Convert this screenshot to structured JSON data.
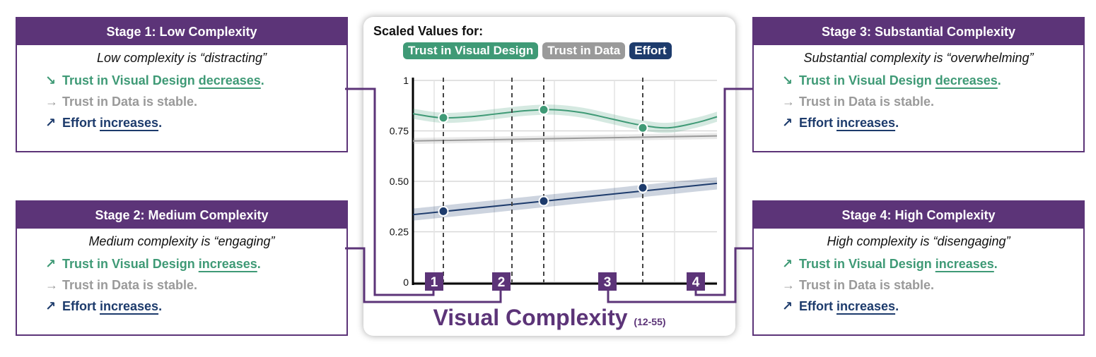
{
  "panels": [
    {
      "title": "Stage 1: Low Complexity",
      "quote": "Low complexity is “distracting”",
      "lines": [
        {
          "arrow": "↘",
          "pre": "Trust in Visual Design ",
          "key": "decreases",
          "post": ".",
          "color": "#3f9a76"
        },
        {
          "arrow": "→",
          "pre": "Trust in Data is stable.",
          "key": "",
          "post": "",
          "color": "#9a9a9a"
        },
        {
          "arrow": "↗",
          "pre": "Effort ",
          "key": "increases",
          "post": ".",
          "color": "#1d3b6c"
        }
      ]
    },
    {
      "title": "Stage 2: Medium Complexity",
      "quote": "Medium complexity is “engaging”",
      "lines": [
        {
          "arrow": "↗",
          "pre": "Trust in Visual Design ",
          "key": "increases",
          "post": ".",
          "color": "#3f9a76"
        },
        {
          "arrow": "→",
          "pre": "Trust in Data is stable.",
          "key": "",
          "post": "",
          "color": "#9a9a9a"
        },
        {
          "arrow": "↗",
          "pre": "Effort ",
          "key": "increases",
          "post": ".",
          "color": "#1d3b6c"
        }
      ]
    },
    {
      "title": "Stage 3: Substantial Complexity",
      "quote": "Substantial complexity is “overwhelming”",
      "lines": [
        {
          "arrow": "↘",
          "pre": "Trust in Visual Design ",
          "key": "decreases",
          "post": ".",
          "color": "#3f9a76"
        },
        {
          "arrow": "→",
          "pre": "Trust in Data is stable.",
          "key": "",
          "post": "",
          "color": "#9a9a9a"
        },
        {
          "arrow": "↗",
          "pre": "Effort ",
          "key": "increases",
          "post": ".",
          "color": "#1d3b6c"
        }
      ]
    },
    {
      "title": "Stage 4: High Complexity",
      "quote": "High complexity is “disengaging”",
      "lines": [
        {
          "arrow": "↗",
          "pre": "Trust in Visual Design ",
          "key": "increases",
          "post": ".",
          "color": "#3f9a76"
        },
        {
          "arrow": "→",
          "pre": "Trust in Data is stable.",
          "key": "",
          "post": "",
          "color": "#9a9a9a"
        },
        {
          "arrow": "↗",
          "pre": "Effort ",
          "key": "increases",
          "post": ".",
          "color": "#1d3b6c"
        }
      ]
    }
  ],
  "card": {
    "title": "Scaled Values for:",
    "xlabel": "Visual Complexity",
    "xrange": "(12-55)"
  },
  "accent": "#5c3478",
  "chart_data": {
    "type": "line",
    "ylim": [
      0,
      1
    ],
    "ytick_labels": [
      "0",
      "0.25",
      "0.50",
      "0.75",
      "1"
    ],
    "xlim": [
      12,
      55
    ],
    "grid": true,
    "series": [
      {
        "name": "Trust in Visual Design",
        "color": "#3f9a76",
        "x": [
          12,
          16,
          20,
          24,
          28,
          32,
          36,
          40,
          44,
          48,
          52,
          55
        ],
        "y": [
          0.835,
          0.815,
          0.82,
          0.835,
          0.85,
          0.855,
          0.84,
          0.81,
          0.78,
          0.765,
          0.79,
          0.82
        ],
        "band": 0.025
      },
      {
        "name": "Trust in Data",
        "color": "#9a9a9a",
        "x": [
          12,
          55
        ],
        "y": [
          0.7,
          0.725
        ],
        "band": 0.015
      },
      {
        "name": "Effort",
        "color": "#1d3b6c",
        "x": [
          12,
          55
        ],
        "y": [
          0.335,
          0.49
        ],
        "band": 0.03
      }
    ],
    "stages": [
      {
        "label": "1",
        "x": 16.3,
        "vds": 0.815,
        "effort": 0.352
      },
      {
        "label": "2",
        "x": 26.0,
        "vds": null,
        "effort": null
      },
      {
        "label": "3",
        "x": 30.5,
        "vds": 0.855,
        "effort": 0.402
      },
      {
        "label": "4",
        "x": 44.5,
        "vds": 0.765,
        "effort": 0.468
      }
    ]
  }
}
